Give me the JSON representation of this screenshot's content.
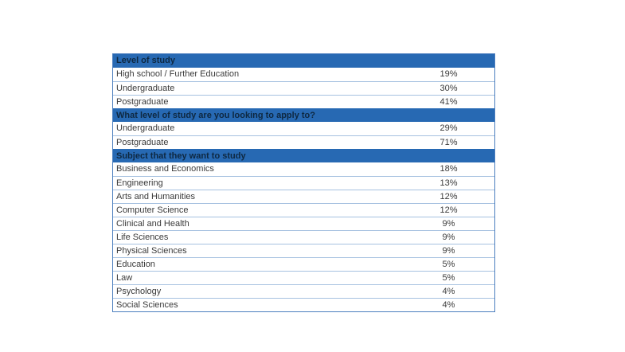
{
  "table": {
    "colors": {
      "header_fill": "#2769b3",
      "header_text": "#0e2841",
      "body_text": "#3a3a3a",
      "inner_border": "#a6c1e0",
      "outer_border": "#4b7ebe"
    },
    "sections": [
      {
        "header": "Level of study",
        "rows": [
          {
            "label": "High school / Further Education",
            "value": "19%"
          },
          {
            "label": "Undergraduate",
            "value": "30%"
          },
          {
            "label": "Postgraduate",
            "value": "41%"
          }
        ]
      },
      {
        "header": "What level of study are you looking to apply to?",
        "rows": [
          {
            "label": "Undergraduate",
            "value": "29%"
          },
          {
            "label": "Postgraduate",
            "value": "71%"
          }
        ]
      },
      {
        "header": "Subject that they want to study",
        "rows": [
          {
            "label": "Business and Economics",
            "value": "18%"
          },
          {
            "label": "Engineering",
            "value": "13%"
          },
          {
            "label": "Arts and Humanities",
            "value": "12%"
          },
          {
            "label": "Computer Science",
            "value": "12%"
          },
          {
            "label": "Clinical and Health",
            "value": "9%"
          },
          {
            "label": "Life Sciences",
            "value": "9%"
          },
          {
            "label": "Physical Sciences",
            "value": "9%"
          },
          {
            "label": "Education",
            "value": "5%"
          },
          {
            "label": "Law",
            "value": "5%"
          },
          {
            "label": "Psychology",
            "value": "4%"
          },
          {
            "label": "Social Sciences",
            "value": "4%"
          }
        ]
      }
    ]
  }
}
